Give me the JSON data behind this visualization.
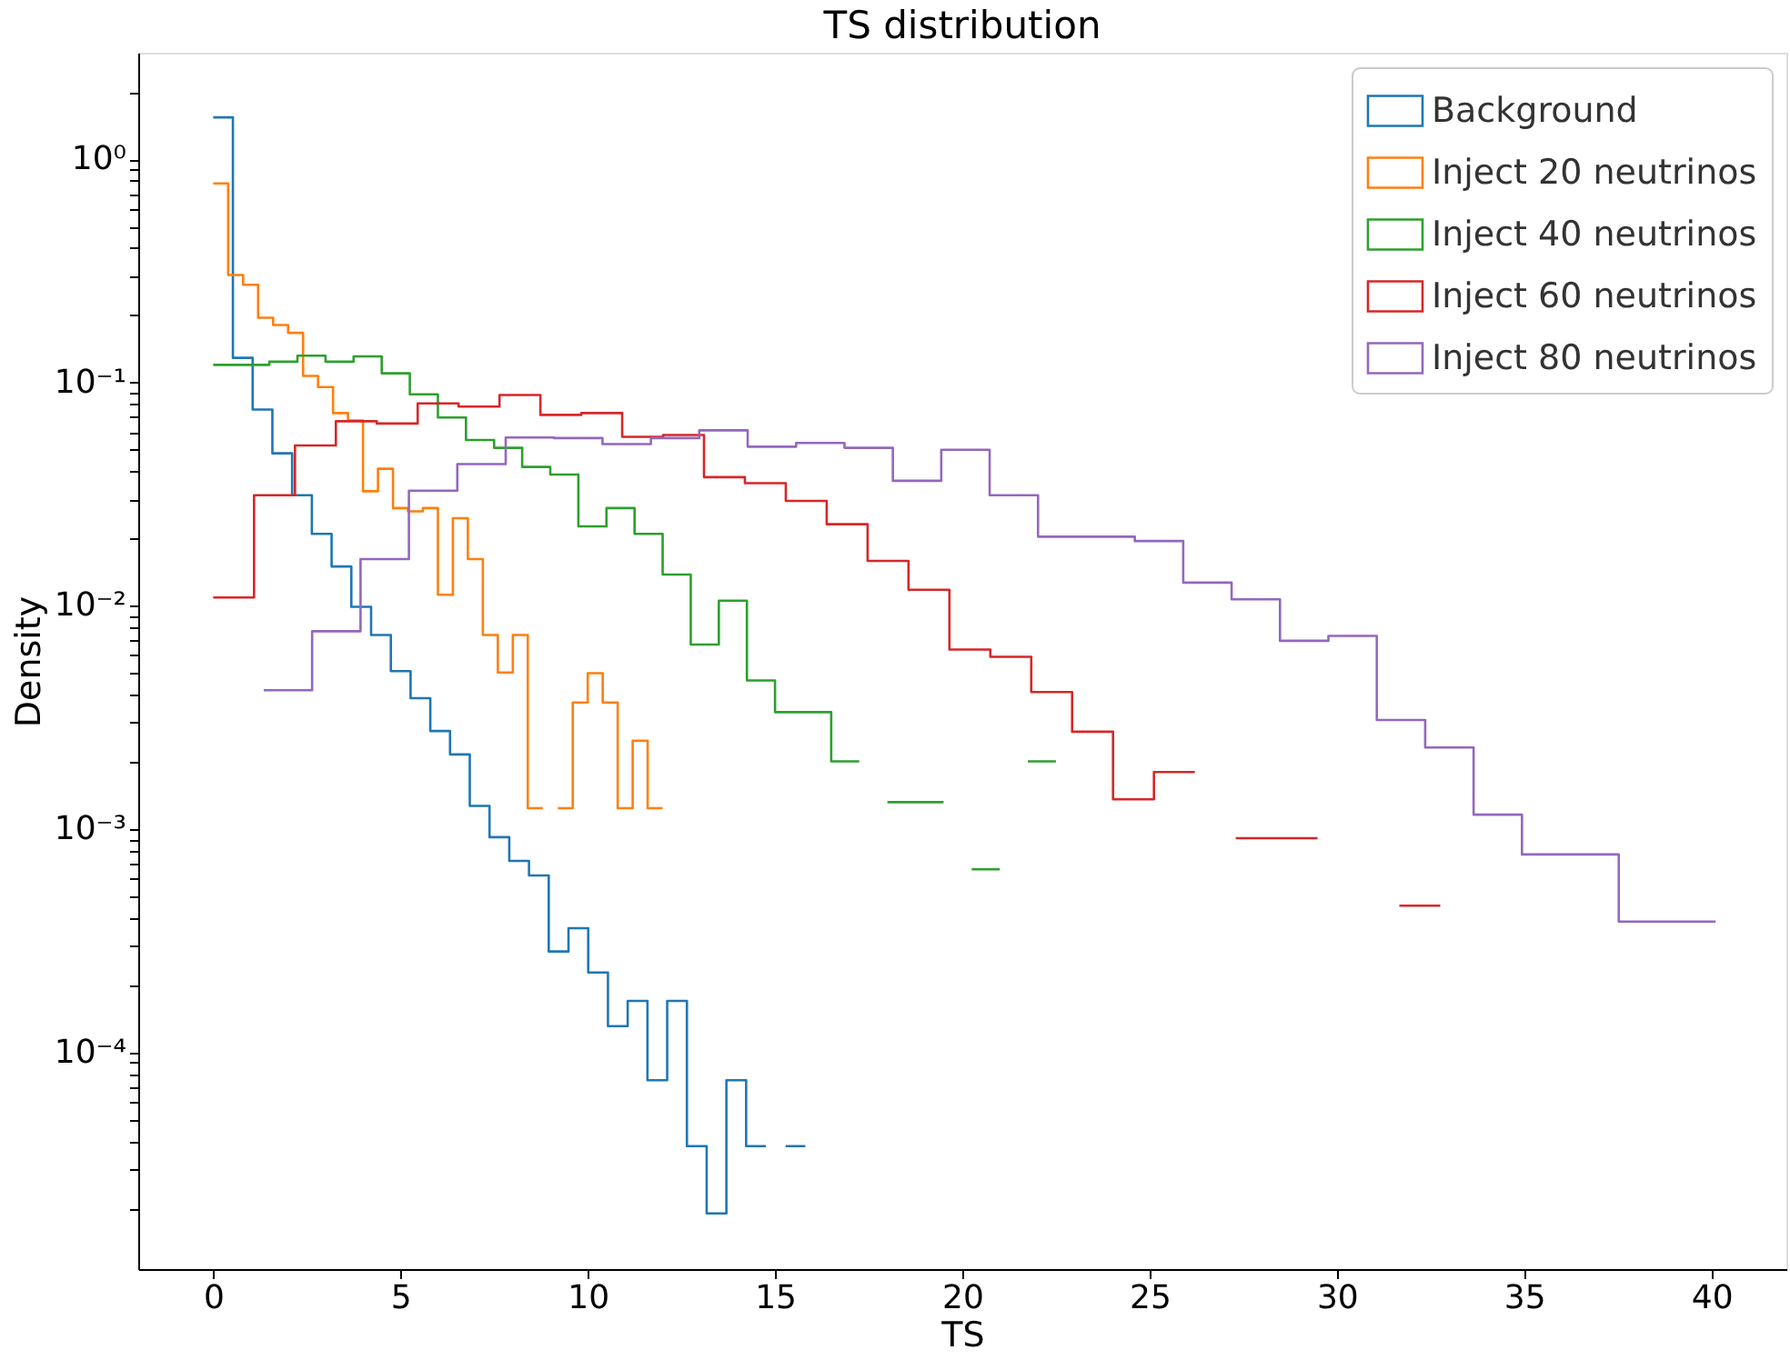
{
  "chart_data": {
    "type": "step",
    "title": "TS distribution",
    "xlabel": "TS",
    "ylabel": "Density",
    "log": "y",
    "grid": false,
    "legend": "top right",
    "line_style": "solid",
    "xlim": [
      -2,
      42
    ],
    "xticks": [
      0,
      5,
      10,
      15,
      20,
      25,
      30,
      35,
      40
    ],
    "ylim": [
      1.07e-05,
      3
    ],
    "yticks": [
      {
        "value": 2e-05,
        "label": null
      },
      {
        "value": 3e-05,
        "label": null
      },
      {
        "value": 4e-05,
        "label": null
      },
      {
        "value": 5e-05,
        "label": null
      },
      {
        "value": 6e-05,
        "label": null
      },
      {
        "value": 7e-05,
        "label": null
      },
      {
        "value": 8e-05,
        "label": null
      },
      {
        "value": 9e-05,
        "label": null
      },
      {
        "value": 0.0001,
        "label": "10⁻⁴"
      },
      {
        "value": 0.0002,
        "label": null
      },
      {
        "value": 0.0003,
        "label": null
      },
      {
        "value": 0.0004,
        "label": null
      },
      {
        "value": 0.0005,
        "label": null
      },
      {
        "value": 0.0006,
        "label": null
      },
      {
        "value": 0.0007,
        "label": null
      },
      {
        "value": 0.0008,
        "label": null
      },
      {
        "value": 0.0009,
        "label": null
      },
      {
        "value": 0.001,
        "label": "10⁻³"
      },
      {
        "value": 0.002,
        "label": null
      },
      {
        "value": 0.003,
        "label": null
      },
      {
        "value": 0.004,
        "label": null
      },
      {
        "value": 0.005,
        "label": null
      },
      {
        "value": 0.006,
        "label": null
      },
      {
        "value": 0.007,
        "label": null
      },
      {
        "value": 0.008,
        "label": null
      },
      {
        "value": 0.009,
        "label": null
      },
      {
        "value": 0.01,
        "label": "10⁻²"
      },
      {
        "value": 0.02,
        "label": null
      },
      {
        "value": 0.03,
        "label": null
      },
      {
        "value": 0.04,
        "label": null
      },
      {
        "value": 0.05,
        "label": null
      },
      {
        "value": 0.06,
        "label": null
      },
      {
        "value": 0.07,
        "label": null
      },
      {
        "value": 0.08,
        "label": null
      },
      {
        "value": 0.09,
        "label": null
      },
      {
        "value": 0.1,
        "label": "10⁻¹"
      },
      {
        "value": 0.2,
        "label": null
      },
      {
        "value": 0.3,
        "label": null
      },
      {
        "value": 0.4,
        "label": null
      },
      {
        "value": 0.5,
        "label": null
      },
      {
        "value": 0.6,
        "label": null
      },
      {
        "value": 0.7,
        "label": null
      },
      {
        "value": 0.8,
        "label": null
      },
      {
        "value": 0.9,
        "label": null
      },
      {
        "value": 1,
        "label": "10⁰"
      },
      {
        "value": 2,
        "label": null
      }
    ],
    "series": [
      {
        "name": "Background",
        "color": "#1f77b4",
        "x": [
          0,
          0.527,
          1.054,
          1.581,
          2.108,
          2.635,
          3.162,
          3.689,
          4.216,
          4.743,
          5.27,
          5.797,
          6.324,
          6.851,
          7.378,
          7.905,
          8.432,
          8.959,
          9.486,
          10.013,
          10.54,
          11.067,
          11.594,
          12.121,
          12.648,
          13.175,
          13.702,
          14.229,
          14.756,
          15.283,
          15.81
        ],
        "values": [
          1.54,
          0.129,
          0.0757,
          0.0482,
          0.0313,
          0.021,
          0.015,
          0.0099,
          0.0074,
          0.0051,
          0.00386,
          0.00275,
          0.00216,
          0.00127,
          0.00092,
          0.00072,
          0.00062,
          0.000283,
          0.00036,
          0.000228,
          0.000131,
          0.00017,
          7.5e-05,
          0.00017,
          3.8e-05,
          1.9e-05,
          7.5e-05,
          3.8e-05,
          null,
          3.8e-05,
          3.8e-05
        ]
      },
      {
        "name": "Inject 20 neutrinos",
        "color": "#ff7f0e",
        "x": [
          0,
          0.4,
          0.8,
          1.2,
          1.6,
          2.0,
          2.4,
          2.8,
          3.2,
          3.6,
          4.0,
          4.4,
          4.8,
          5.2,
          5.6,
          6.0,
          6.4,
          6.8,
          7.2,
          7.6,
          8.0,
          8.4,
          8.8,
          9.2,
          9.6,
          10.0,
          10.4,
          10.8,
          11.2,
          11.6,
          12.0
        ],
        "values": [
          0.78,
          0.303,
          0.274,
          0.195,
          0.181,
          0.167,
          0.107,
          0.0955,
          0.073,
          0.0676,
          0.0326,
          0.0411,
          0.0274,
          0.0265,
          0.0274,
          0.0112,
          0.0247,
          0.0162,
          0.0074,
          0.00503,
          0.0074,
          0.00124,
          null,
          0.00124,
          0.00369,
          0.00499,
          0.00369,
          0.00124,
          0.00249,
          0.00124,
          0.00124
        ]
      },
      {
        "name": "Inject 40 neutrinos",
        "color": "#2ca02c",
        "x": [
          0,
          0.75,
          1.5,
          2.25,
          3.0,
          3.75,
          4.5,
          5.25,
          6.0,
          6.75,
          7.5,
          8.25,
          9.0,
          9.75,
          10.5,
          11.25,
          12.0,
          12.75,
          13.5,
          14.25,
          15.0,
          15.75,
          16.5,
          17.25,
          18.0,
          18.75,
          19.5,
          20.25,
          21.0,
          21.75,
          22.5
        ],
        "values": [
          0.12,
          0.12,
          0.124,
          0.132,
          0.124,
          0.131,
          0.11,
          0.0885,
          0.0697,
          0.0553,
          0.051,
          0.0419,
          0.0387,
          0.0227,
          0.0274,
          0.021,
          0.0138,
          0.00671,
          0.01054,
          0.00463,
          0.00334,
          0.00334,
          0.00201,
          null,
          0.00132,
          0.00132,
          null,
          0.00066,
          null,
          0.00201,
          0.00201
        ]
      },
      {
        "name": "Inject 60 neutrinos",
        "color": "#d62728",
        "x": [
          0,
          1.092,
          2.184,
          3.276,
          4.368,
          5.46,
          6.552,
          7.644,
          8.736,
          9.828,
          10.92,
          12.012,
          13.104,
          14.196,
          15.288,
          16.38,
          17.472,
          18.564,
          19.656,
          20.748,
          21.84,
          22.932,
          24.024,
          25.116,
          26.208,
          27.3,
          28.392,
          29.484,
          30.576,
          31.668,
          32.76
        ],
        "values": [
          0.0109,
          0.0313,
          0.0523,
          0.0671,
          0.0655,
          0.0806,
          0.078,
          0.088,
          0.0716,
          0.073,
          0.0571,
          0.0582,
          0.0377,
          0.0354,
          0.0295,
          0.0232,
          0.0159,
          0.0118,
          0.00637,
          0.00591,
          0.00411,
          0.00273,
          0.00136,
          0.0018,
          null,
          0.00091,
          0.00091,
          null,
          null,
          0.000454,
          0.000454
        ]
      },
      {
        "name": "Inject 80 neutrinos",
        "color": "#9467bd",
        "x": [
          1.35,
          2.642,
          3.934,
          5.226,
          6.518,
          7.81,
          9.102,
          10.394,
          11.686,
          12.978,
          14.27,
          15.562,
          16.854,
          18.146,
          19.438,
          20.73,
          22.022,
          23.314,
          24.606,
          25.898,
          27.19,
          28.482,
          29.774,
          31.066,
          32.358,
          33.65,
          34.942,
          36.234,
          37.526,
          38.818,
          40.11
        ],
        "values": [
          0.00419,
          0.00769,
          0.0162,
          0.0328,
          0.0431,
          0.0567,
          0.0564,
          0.053,
          0.0564,
          0.0611,
          0.0516,
          0.0536,
          0.051,
          0.0363,
          0.05,
          0.0313,
          0.0204,
          0.0204,
          0.0195,
          0.0127,
          0.0107,
          0.00697,
          0.00733,
          0.00308,
          0.00232,
          0.00116,
          0.00077,
          0.00077,
          0.000385,
          0.000385,
          0.000385
        ]
      }
    ]
  }
}
